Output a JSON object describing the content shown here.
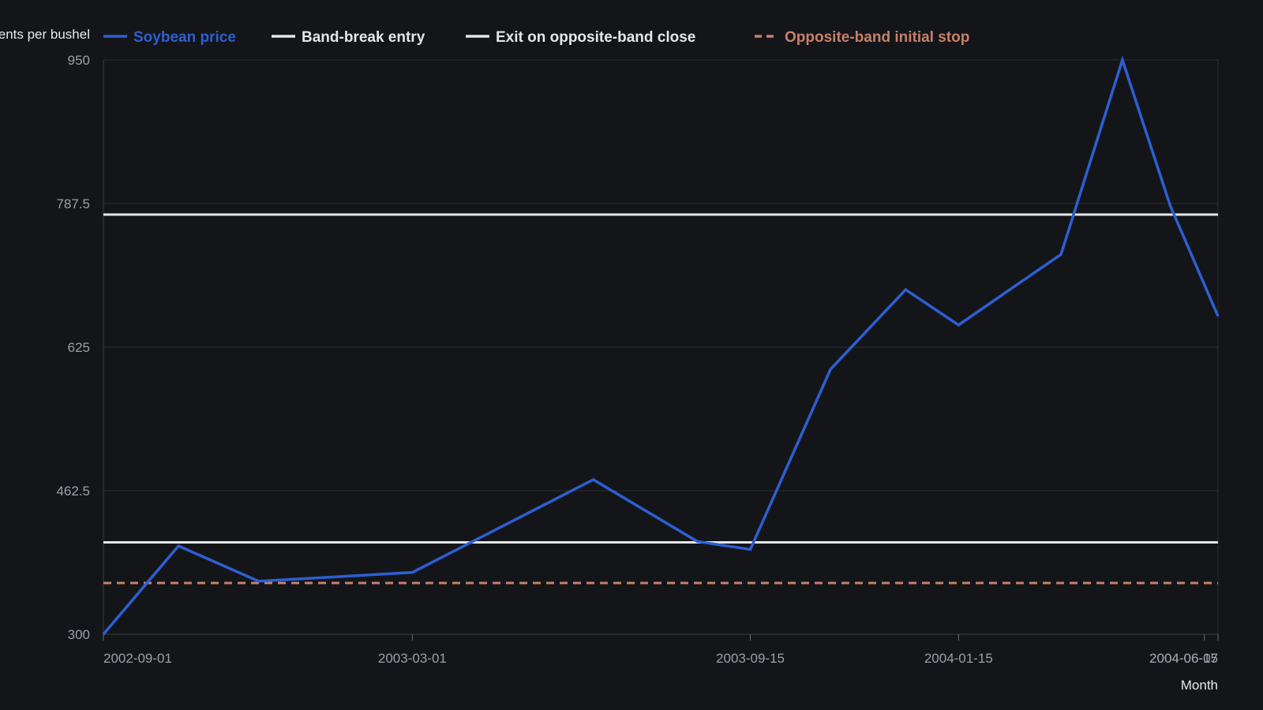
{
  "chart_data": {
    "type": "line",
    "title": "",
    "xlabel": "Month",
    "ylabel": "cents per bushel",
    "ylim": [
      300,
      950
    ],
    "yticks": [
      "950",
      "787.5",
      "625",
      "462.5",
      "300"
    ],
    "xlim": [
      "2002-09-01",
      "2004-06-15"
    ],
    "xtick_labels": [
      "2002-09-01",
      "2003-03-01",
      "2003-09-15",
      "2004-01-15",
      "2004-06-15",
      "2004-06-07"
    ],
    "grid": true,
    "legend_position": "top",
    "series": [
      {
        "name": "Soybean price",
        "color": "#2d5fd3",
        "style": "solid",
        "points": [
          [
            "2002-09-01",
            300
          ],
          [
            "2002-10-15",
            400
          ],
          [
            "2002-12-01",
            360
          ],
          [
            "2003-03-01",
            370
          ],
          [
            "2003-06-15",
            475
          ],
          [
            "2003-08-15",
            405
          ],
          [
            "2003-09-15",
            396
          ],
          [
            "2003-11-01",
            600
          ],
          [
            "2003-12-15",
            690
          ],
          [
            "2004-01-15",
            650
          ],
          [
            "2004-03-15",
            730
          ],
          [
            "2004-04-20",
            950
          ],
          [
            "2004-05-18",
            785
          ],
          [
            "2004-06-15",
            660
          ]
        ]
      },
      {
        "name": "Band-break entry",
        "color": "#e6e6e6",
        "style": "solid",
        "points": [
          [
            "2002-09-01",
            775
          ],
          [
            "2004-06-15",
            775
          ]
        ]
      },
      {
        "name": "Exit on opposite-band close",
        "color": "#e6e6e6",
        "style": "solid",
        "points": [
          [
            "2002-09-01",
            404
          ],
          [
            "2004-06-15",
            404
          ]
        ]
      },
      {
        "name": "Opposite-band initial stop",
        "color": "#c8806b",
        "style": "dashed",
        "points": [
          [
            "2002-09-01",
            358
          ],
          [
            "2004-06-15",
            358
          ]
        ]
      }
    ]
  }
}
